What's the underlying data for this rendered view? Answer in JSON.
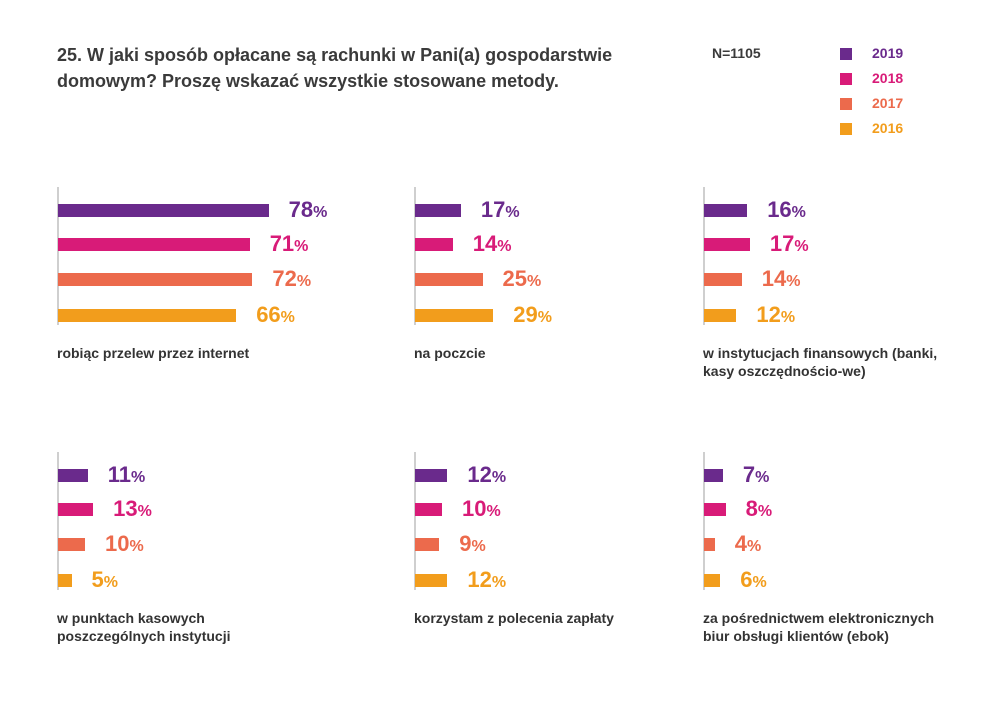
{
  "chart_data": {
    "type": "bar",
    "title": "25. W jaki sposób opłacane są rachunki w Pani(a) gospodarstwie domowym? Proszę wskazać wszystkie stosowane metody.",
    "sample": "N=1105",
    "unit": "%",
    "xlim": [
      0,
      100
    ],
    "legend_position": "top-right",
    "series": [
      {
        "name": "2019",
        "color": "#6a2a8c"
      },
      {
        "name": "2018",
        "color": "#d81b78"
      },
      {
        "name": "2017",
        "color": "#ec6a4c"
      },
      {
        "name": "2016",
        "color": "#f29d1c"
      }
    ],
    "categories": [
      {
        "label": "robiąc przelew przez internet",
        "values": [
          78,
          71,
          72,
          66
        ]
      },
      {
        "label": "na poczcie",
        "values": [
          17,
          14,
          25,
          29
        ]
      },
      {
        "label": "w instytucjach finansowych (banki, kasy oszczędnościo-we)",
        "values": [
          16,
          17,
          14,
          12
        ]
      },
      {
        "label": "w punktach kasowych poszczególnych instytucji",
        "values": [
          11,
          13,
          10,
          5
        ]
      },
      {
        "label": "korzystam z polecenia zapłaty",
        "values": [
          12,
          10,
          9,
          12
        ]
      },
      {
        "label": "za pośrednictwem elektronicznych biur obsługi klientów (ebok)",
        "values": [
          7,
          8,
          4,
          6
        ]
      }
    ]
  }
}
